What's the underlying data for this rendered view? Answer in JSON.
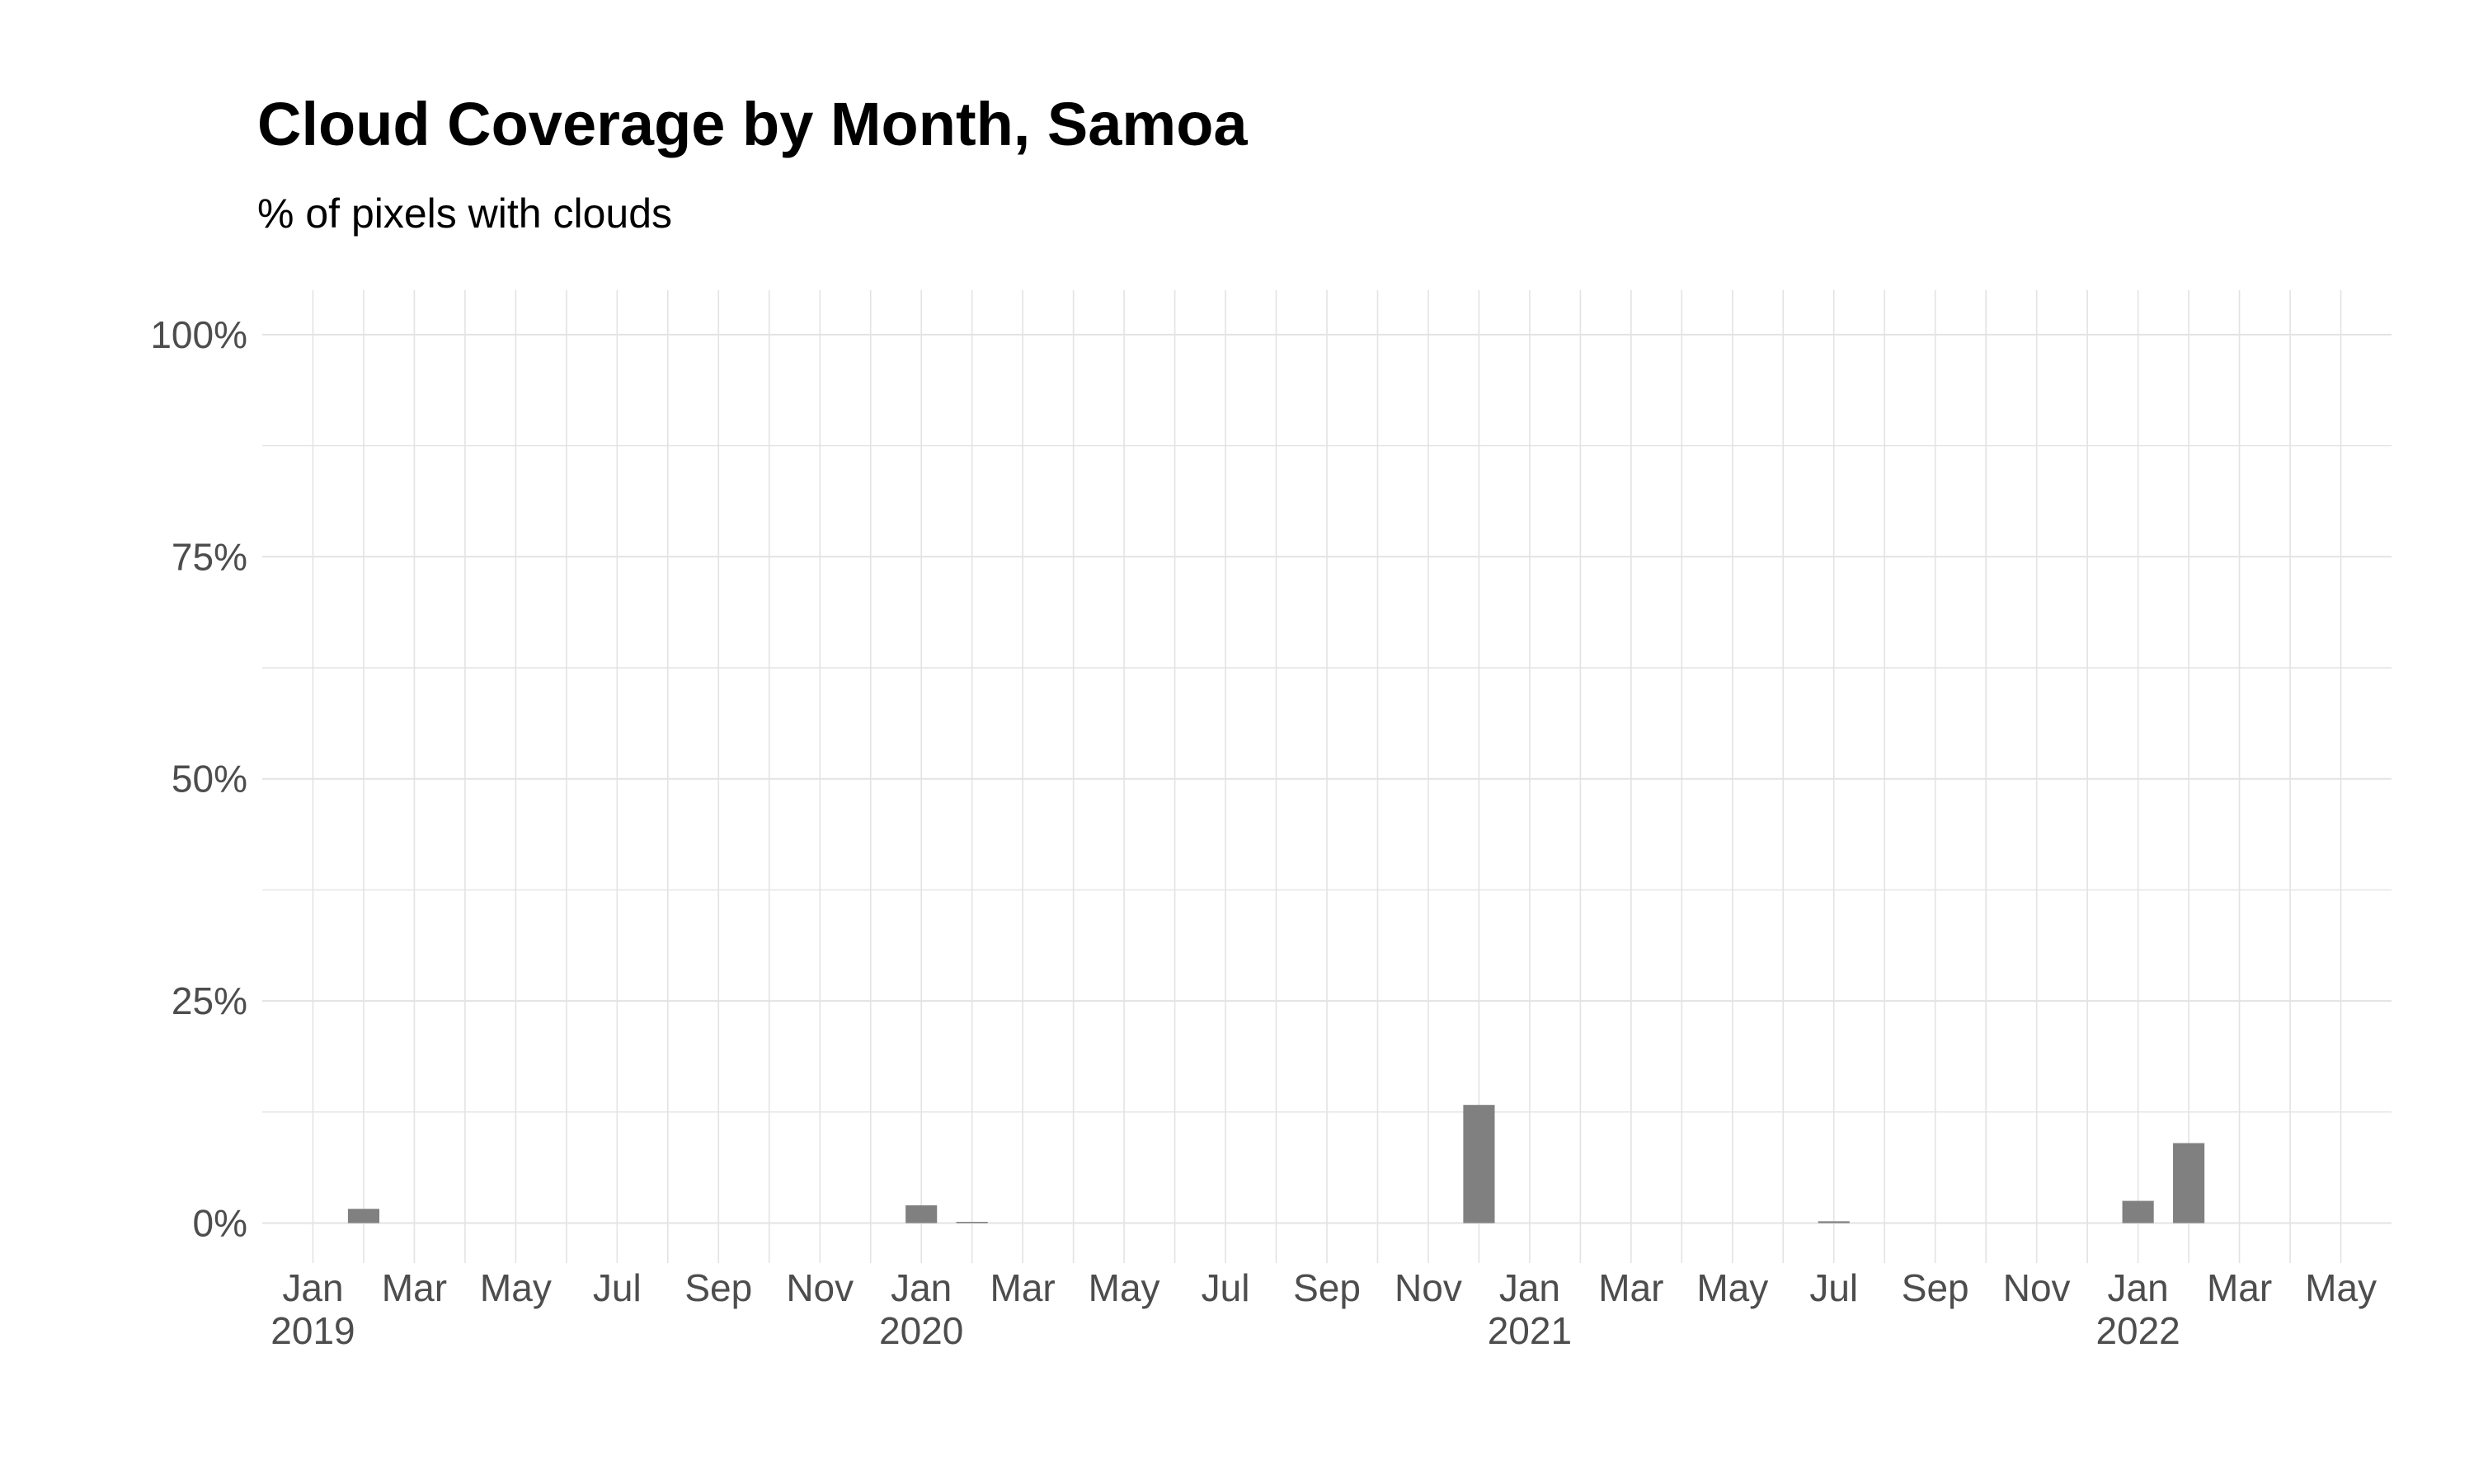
{
  "chart_data": {
    "type": "bar",
    "title": "Cloud Coverage by Month, Samoa",
    "subtitle": "% of pixels with clouds",
    "xlabel": "",
    "ylabel": "",
    "x_axis": {
      "range": [
        "2018-12",
        "2022-06"
      ],
      "ticks": [
        {
          "month": "2019-01",
          "label": "Jan",
          "year": "2019"
        },
        {
          "month": "2019-03",
          "label": "Mar",
          "year": ""
        },
        {
          "month": "2019-05",
          "label": "May",
          "year": ""
        },
        {
          "month": "2019-07",
          "label": "Jul",
          "year": ""
        },
        {
          "month": "2019-09",
          "label": "Sep",
          "year": ""
        },
        {
          "month": "2019-11",
          "label": "Nov",
          "year": ""
        },
        {
          "month": "2020-01",
          "label": "Jan",
          "year": "2020"
        },
        {
          "month": "2020-03",
          "label": "Mar",
          "year": ""
        },
        {
          "month": "2020-05",
          "label": "May",
          "year": ""
        },
        {
          "month": "2020-07",
          "label": "Jul",
          "year": ""
        },
        {
          "month": "2020-09",
          "label": "Sep",
          "year": ""
        },
        {
          "month": "2020-11",
          "label": "Nov",
          "year": ""
        },
        {
          "month": "2021-01",
          "label": "Jan",
          "year": "2021"
        },
        {
          "month": "2021-03",
          "label": "Mar",
          "year": ""
        },
        {
          "month": "2021-05",
          "label": "May",
          "year": ""
        },
        {
          "month": "2021-07",
          "label": "Jul",
          "year": ""
        },
        {
          "month": "2021-09",
          "label": "Sep",
          "year": ""
        },
        {
          "month": "2021-11",
          "label": "Nov",
          "year": ""
        },
        {
          "month": "2022-01",
          "label": "Jan",
          "year": "2022"
        },
        {
          "month": "2022-03",
          "label": "Mar",
          "year": ""
        },
        {
          "month": "2022-05",
          "label": "May",
          "year": ""
        }
      ]
    },
    "y_axis": {
      "range": [
        -0.045,
        1.05
      ],
      "ticks": [
        {
          "value": 0,
          "label": "0%"
        },
        {
          "value": 0.25,
          "label": "25%"
        },
        {
          "value": 0.5,
          "label": "50%"
        },
        {
          "value": 0.75,
          "label": "75%"
        },
        {
          "value": 1.0,
          "label": "100%"
        }
      ]
    },
    "grid": true,
    "bar_color": "#808080",
    "grid_color": "#e3e3e3",
    "data": [
      {
        "month": "2019-02",
        "value": 0.016
      },
      {
        "month": "2020-01",
        "value": 0.02
      },
      {
        "month": "2020-02",
        "value": 0.001
      },
      {
        "month": "2020-12",
        "value": 0.133
      },
      {
        "month": "2021-07",
        "value": 0.002
      },
      {
        "month": "2022-01",
        "value": 0.025
      },
      {
        "month": "2022-02",
        "value": 0.09
      }
    ]
  }
}
